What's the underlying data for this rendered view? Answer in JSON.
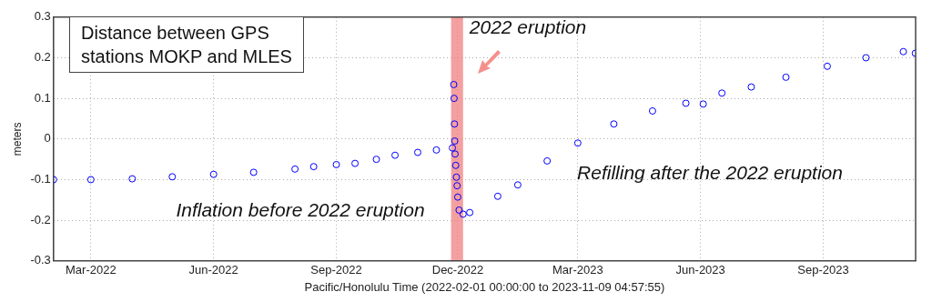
{
  "chart_data": {
    "type": "scatter",
    "title": "Distance between GPS stations MOKP and MLES",
    "xlabel": "Pacific/Honolulu Time (2022-02-01 00:00:00 to 2023-11-09 04:57:55)",
    "ylabel": "meters",
    "x": [
      "2022-02-01",
      "2022-03-01",
      "2022-04-01",
      "2022-05-01",
      "2022-06-01",
      "2022-07-01",
      "2022-08-01",
      "2022-08-15",
      "2022-09-01",
      "2022-09-15",
      "2022-10-01",
      "2022-10-15",
      "2022-11-01",
      "2022-11-15",
      "2022-11-27",
      "2022-11-28T00:00",
      "2022-11-28T06:00",
      "2022-11-28T12:00",
      "2022-11-28T18:00",
      "2022-11-29T00:00",
      "2022-11-29T12:00",
      "2022-11-30T00:00",
      "2022-11-30T12:00",
      "2022-12-01T00:00",
      "2022-12-02T00:00",
      "2022-12-05",
      "2022-12-10",
      "2022-12-31",
      "2023-01-15",
      "2023-02-06",
      "2023-03-01",
      "2023-03-28",
      "2023-04-26",
      "2023-05-21",
      "2023-06-03",
      "2023-06-17",
      "2023-07-09",
      "2023-08-04",
      "2023-09-04",
      "2023-10-03",
      "2023-10-31",
      "2023-11-09"
    ],
    "series": [
      {
        "color": "#0000ff",
        "values": [
          -0.1,
          -0.1,
          -0.098,
          -0.093,
          -0.087,
          -0.082,
          -0.074,
          -0.068,
          -0.063,
          -0.06,
          -0.05,
          -0.04,
          -0.033,
          -0.027,
          -0.022,
          0.134,
          0.1,
          0.037,
          -0.005,
          -0.037,
          -0.065,
          -0.094,
          -0.115,
          -0.143,
          -0.175,
          -0.185,
          -0.181,
          -0.141,
          -0.113,
          -0.054,
          -0.01,
          0.037,
          0.069,
          0.088,
          0.086,
          0.113,
          0.128,
          0.152,
          0.179,
          0.2,
          0.215,
          0.211
        ]
      }
    ],
    "marker": "circle",
    "grid": true,
    "legend": false,
    "xlim": [
      "2022-02-01",
      "2023-11-09T04:57"
    ],
    "xticks": [
      {
        "value": "2022-03-01",
        "label": "Mar-2022"
      },
      {
        "value": "2022-06-01",
        "label": "Jun-2022"
      },
      {
        "value": "2022-09-01",
        "label": "Sep-2022"
      },
      {
        "value": "2022-12-01",
        "label": "Dec-2022"
      },
      {
        "value": "2023-03-01",
        "label": "Mar-2023"
      },
      {
        "value": "2023-06-01",
        "label": "Jun-2023"
      },
      {
        "value": "2023-09-01",
        "label": "Sep-2023"
      }
    ],
    "ylim": [
      -0.3,
      0.3
    ],
    "yticks": [
      -0.3,
      -0.2,
      -0.1,
      0,
      0.1,
      0.2,
      0.3
    ],
    "bands": [
      {
        "axis": "x",
        "from": "2022-11-26",
        "to": "2022-12-05",
        "color": "#f08080"
      }
    ],
    "annotations": [
      "2022 eruption",
      "Inflation before 2022 eruption",
      "Refilling after the 2022 eruption"
    ]
  }
}
